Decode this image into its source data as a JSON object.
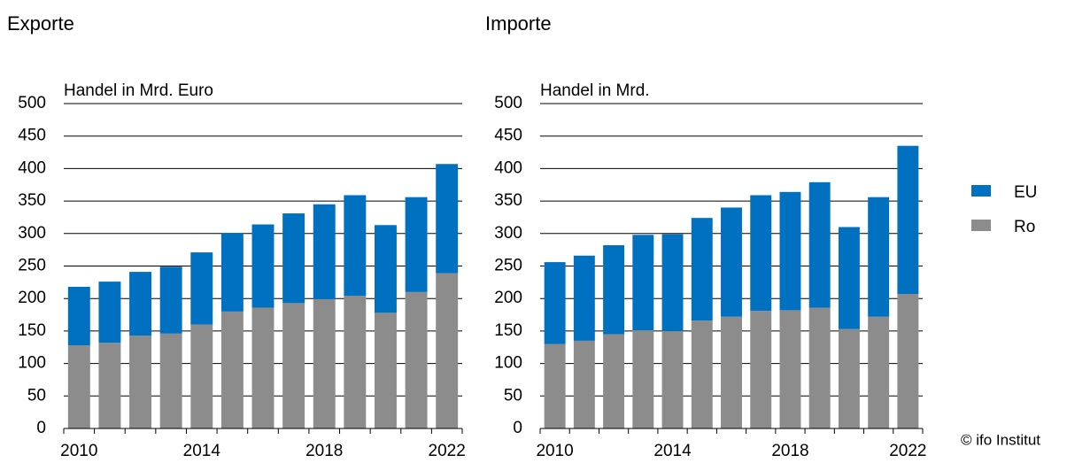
{
  "chart_data": [
    {
      "type": "bar",
      "stacked": true,
      "title": "Exporte",
      "y_label": "Handel in Mrd. Euro",
      "categories": [
        "2010",
        null,
        null,
        null,
        "2014",
        null,
        null,
        null,
        "2018",
        null,
        null,
        null,
        "2022"
      ],
      "series": [
        {
          "name": "Ro",
          "color": "#8c8c8c",
          "values": [
            128,
            132,
            143,
            146,
            160,
            180,
            186,
            193,
            199,
            204,
            178,
            210,
            239
          ]
        },
        {
          "name": "EU",
          "color": "#0070c0",
          "values": [
            90,
            94,
            98,
            103,
            111,
            121,
            128,
            138,
            146,
            155,
            135,
            146,
            168
          ]
        }
      ],
      "ylim": [
        0,
        500
      ],
      "yticks": [
        0,
        50,
        100,
        150,
        200,
        250,
        300,
        350,
        400,
        450,
        500
      ],
      "grid": true
    },
    {
      "type": "bar",
      "stacked": true,
      "title": "Importe",
      "y_label": "Handel in Mrd.",
      "categories": [
        "2010",
        null,
        null,
        null,
        "2014",
        null,
        null,
        null,
        "2018",
        null,
        null,
        null,
        "2022"
      ],
      "series": [
        {
          "name": "Ro",
          "color": "#8c8c8c",
          "values": [
            130,
            135,
            145,
            151,
            150,
            166,
            172,
            181,
            182,
            186,
            153,
            172,
            207
          ]
        },
        {
          "name": "EU",
          "color": "#0070c0",
          "values": [
            126,
            131,
            137,
            147,
            149,
            158,
            168,
            178,
            182,
            193,
            157,
            184,
            228
          ]
        }
      ],
      "ylim": [
        0,
        500
      ],
      "yticks": [
        0,
        50,
        100,
        150,
        200,
        250,
        300,
        350,
        400,
        450,
        500
      ],
      "grid": true
    }
  ],
  "credit": "© ifo Institut"
}
